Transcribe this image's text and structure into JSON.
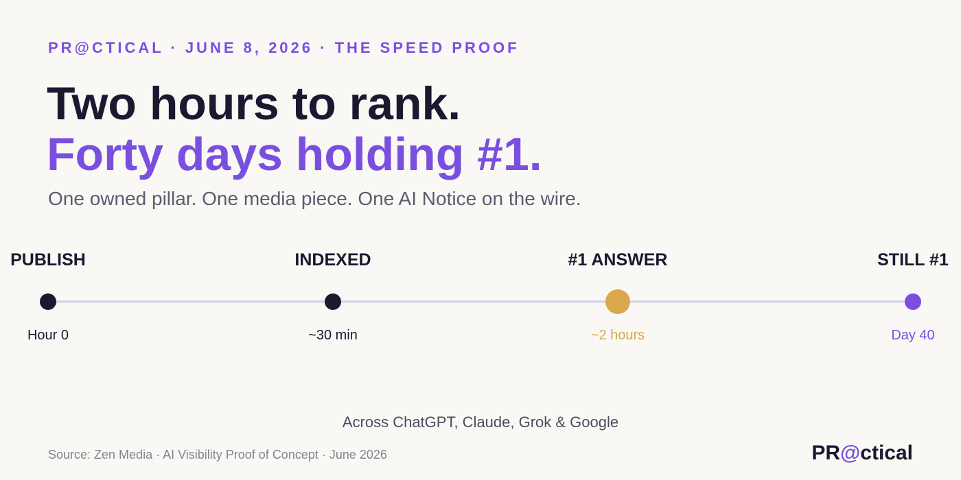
{
  "eyebrow": "PR@CTICAL · JUNE 8, 2026 · THE SPEED PROOF",
  "headline": {
    "line1": "Two hours to rank.",
    "line2": "Forty days holding #1."
  },
  "subtitle": "One owned pillar. One media piece. One AI Notice on the wire.",
  "timeline": {
    "steps": [
      {
        "label": "PUBLISH",
        "time": "Hour 0"
      },
      {
        "label": "INDEXED",
        "time": "~30 min"
      },
      {
        "label": "#1 ANSWER",
        "time": "~2 hours"
      },
      {
        "label": "STILL #1",
        "time": "Day 40"
      }
    ]
  },
  "footnote": "Across ChatGPT, Claude, Grok & Google",
  "source": "Source: Zen Media · AI Visibility Proof of Concept · June 2026",
  "logo": {
    "start": "PR",
    "at": "@",
    "end": "ctical"
  }
}
